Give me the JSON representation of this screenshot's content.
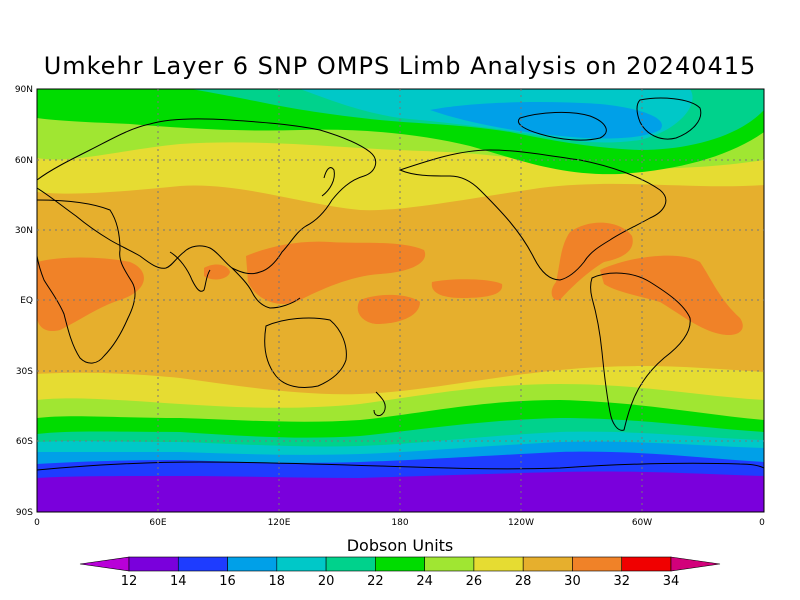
{
  "title": "Umkehr Layer 6 SNP OMPS Limb Analysis on 20240415",
  "lat_labels": [
    "90N",
    "60N",
    "30N",
    "EQ",
    "30S",
    "60S",
    "90S"
  ],
  "lon_labels": [
    "0",
    "60E",
    "120E",
    "180",
    "120W",
    "60W",
    "0"
  ],
  "colorbar": {
    "title": "Dobson Units",
    "ticks": [
      "12",
      "14",
      "16",
      "18",
      "20",
      "22",
      "24",
      "26",
      "28",
      "30",
      "32",
      "34"
    ],
    "colors": [
      "#b800d8",
      "#7a00dc",
      "#1e3cff",
      "#00a0e8",
      "#00c8c8",
      "#00d28c",
      "#00dc00",
      "#a0e632",
      "#e6dc32",
      "#e6af2d",
      "#f08228",
      "#f00000",
      "#d2007a"
    ]
  },
  "map_data": {
    "variable": "Umkehr Layer 6 ozone",
    "units": "Dobson Units",
    "date": "20240415",
    "lon_range": [
      0,
      360
    ],
    "lat_range": [
      -90,
      90
    ],
    "zonal_profile": [
      {
        "lat": 90,
        "value": 24
      },
      {
        "lat": 80,
        "value": 23
      },
      {
        "lat": 70,
        "value": 24
      },
      {
        "lat": 60,
        "value": 26
      },
      {
        "lat": 50,
        "value": 27
      },
      {
        "lat": 40,
        "value": 28
      },
      {
        "lat": 30,
        "value": 29
      },
      {
        "lat": 20,
        "value": 29
      },
      {
        "lat": 10,
        "value": 29
      },
      {
        "lat": 0,
        "value": 29
      },
      {
        "lat": -10,
        "value": 29
      },
      {
        "lat": -20,
        "value": 29
      },
      {
        "lat": -30,
        "value": 28
      },
      {
        "lat": -40,
        "value": 25
      },
      {
        "lat": -50,
        "value": 22
      },
      {
        "lat": -60,
        "value": 19
      },
      {
        "lat": -70,
        "value": 14
      },
      {
        "lat": -80,
        "value": 13
      },
      {
        "lat": -90,
        "value": 13
      }
    ],
    "maxima": [
      {
        "region": "Central Africa",
        "value": 30
      },
      {
        "region": "Western Pacific",
        "value": 30
      },
      {
        "region": "Caribbean / northern South America",
        "value": 30
      }
    ],
    "minima": [
      {
        "region": "Antarctica",
        "value": 13
      },
      {
        "region": "Arctic Canada",
        "value": 21
      }
    ]
  }
}
